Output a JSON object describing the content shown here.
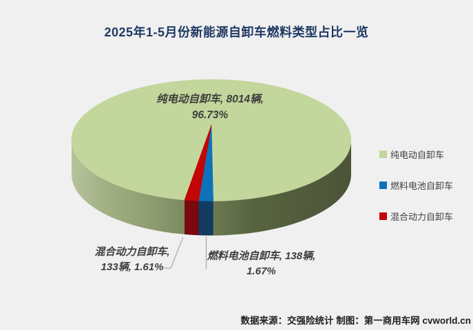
{
  "chart_data": {
    "type": "pie",
    "style": "3d",
    "title": "2025年1-5月份新能源自卸车燃料类型占比一览",
    "unit": "辆",
    "legend_position": "right",
    "start_angle_deg": 101,
    "slices": [
      {
        "name": "纯电动自卸车",
        "value": 8014,
        "pct": 96.73,
        "callout": "纯电动自卸车, 8014辆,",
        "callout2": "96.73%",
        "color": "#c3d69b",
        "wall_color": ""
      },
      {
        "name": "燃料电池自卸车",
        "value": 138,
        "pct": 1.67,
        "callout": "燃料电池自卸车, 138辆,",
        "callout2": "1.67%",
        "color": "#0e72bb",
        "wall_color": "#113c5f"
      },
      {
        "name": "混合动力自卸车",
        "value": 133,
        "pct": 1.61,
        "callout": "混合动力自卸车,",
        "callout2": "133辆, 1.61%",
        "color": "#c20505",
        "wall_color": "#7a080e"
      }
    ],
    "skirt_gradient": [
      "#b7c29c",
      "#a2b084",
      "#8c9b6f",
      "#6f7c55",
      "#57633f",
      "#4c5438"
    ]
  },
  "footer": {
    "text": "数据来源：交强险统计 制图：第一商用车网 cvworld.cn"
  }
}
